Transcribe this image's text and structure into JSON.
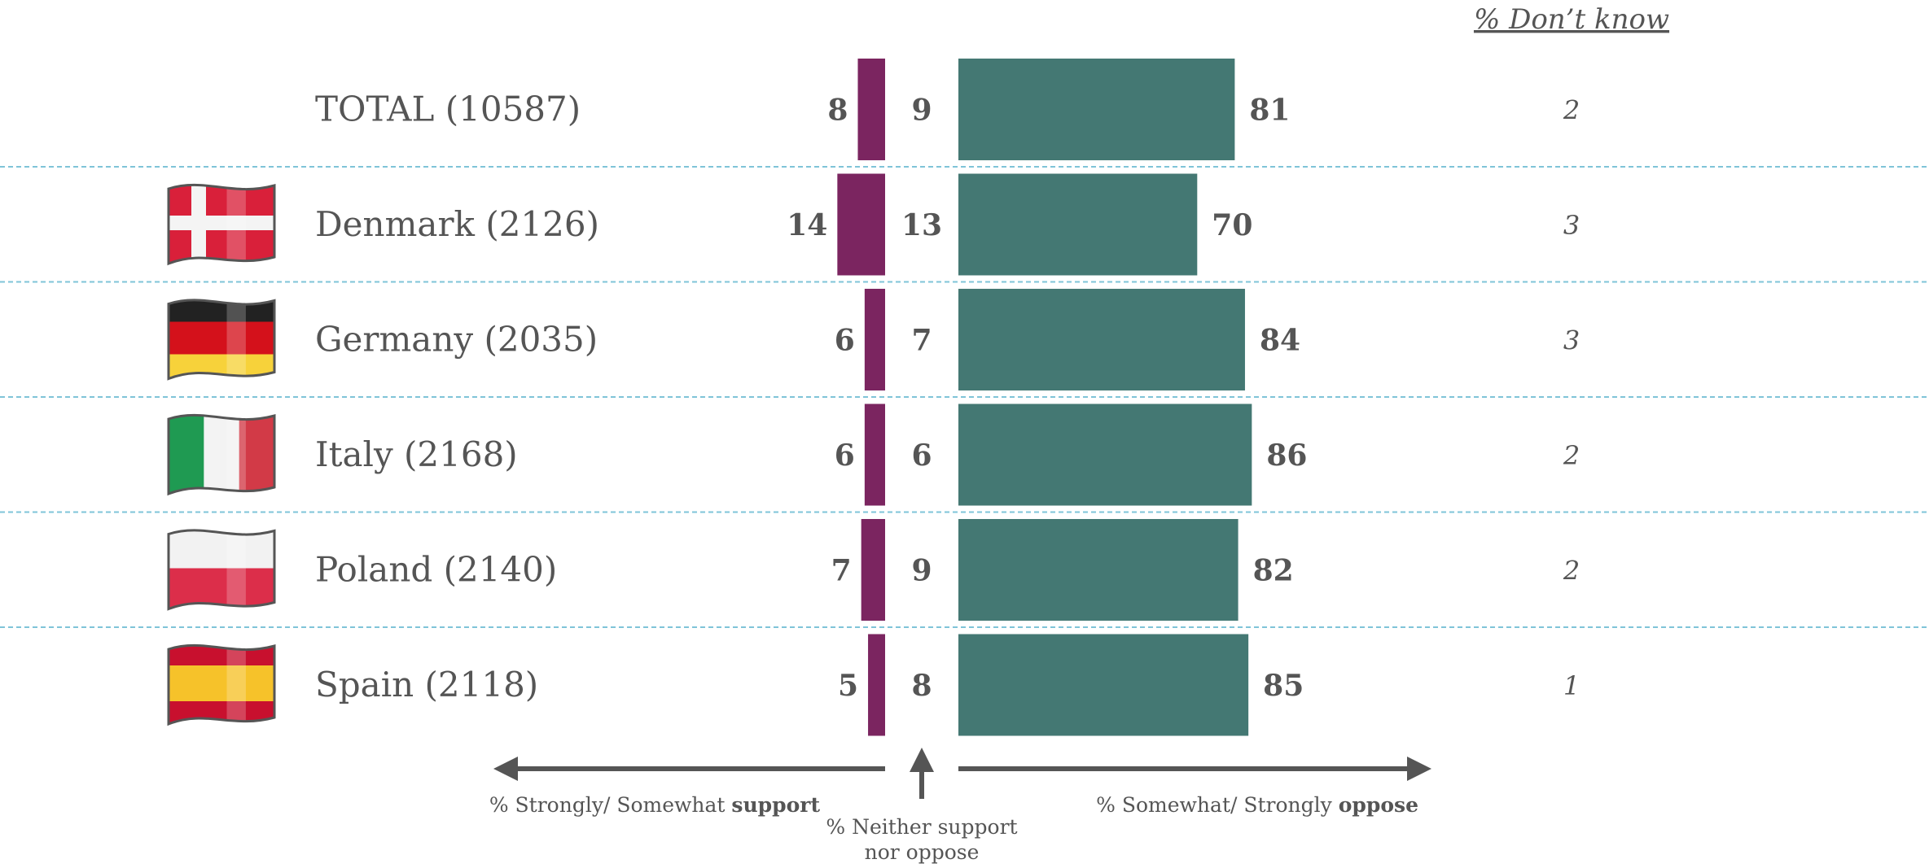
{
  "chart_data": {
    "type": "bar",
    "categories": [
      "TOTAL (10587)",
      "Denmark (2126)",
      "Germany (2035)",
      "Italy (2168)",
      "Poland (2140)",
      "Spain (2118)"
    ],
    "flags": [
      "",
      "denmark-flag-icon",
      "germany-flag-icon",
      "italy-flag-icon",
      "poland-flag-icon",
      "spain-flag-icon"
    ],
    "series": [
      {
        "name": "% Strongly/ Somewhat support",
        "values": [
          8,
          14,
          6,
          6,
          7,
          5
        ],
        "color": "#7b2560"
      },
      {
        "name": "% Neither support nor oppose",
        "values": [
          9,
          13,
          7,
          6,
          9,
          8
        ]
      },
      {
        "name": "% Somewhat/ Strongly oppose",
        "values": [
          81,
          70,
          84,
          86,
          82,
          85
        ],
        "color": "#447873"
      },
      {
        "name": "% Don't know",
        "values": [
          2,
          3,
          3,
          2,
          2,
          1
        ]
      }
    ],
    "dont_know_header": "% Don’t know",
    "axis_labels": {
      "support_prefix": "% Strongly/ Somewhat ",
      "support_bold": "support",
      "neither_line1": "% Neither support",
      "neither_line2": "nor oppose",
      "oppose_prefix": "% Somewhat/ Strongly ",
      "oppose_bold": "oppose"
    },
    "grid": "dashed separators between rows",
    "colors": {
      "support": "#7b2560",
      "oppose": "#447873",
      "separator": "#7fc4d8",
      "arrow": "#555555"
    }
  }
}
